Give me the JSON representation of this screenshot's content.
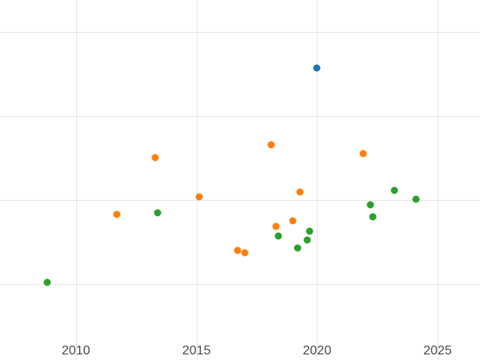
{
  "chart_data": {
    "type": "scatter",
    "title": "",
    "xlabel": "",
    "ylabel": "",
    "grid": true,
    "legend": "none",
    "background": "#ffffff",
    "gridline_color": "#e6e6e6",
    "tick_label_color": "#494949",
    "xlim": [
      2006.85,
      2026.76
    ],
    "ylim": [
      1.9,
      87.6
    ],
    "x_ticks": [
      {
        "value": 2010,
        "label": "2010"
      },
      {
        "value": 2015,
        "label": "2015"
      },
      {
        "value": 2020,
        "label": "2020"
      },
      {
        "value": 2025,
        "label": "2025"
      }
    ],
    "y_gridlines": [
      20,
      40,
      60,
      80
    ],
    "series": [
      {
        "name": "blue",
        "color": "#1f77b4",
        "points": [
          {
            "x": 2020.0,
            "y": 71.4
          }
        ]
      },
      {
        "name": "orange",
        "color": "#ff7f0e",
        "points": [
          {
            "x": 2011.7,
            "y": 36.6
          },
          {
            "x": 2013.3,
            "y": 50.0
          },
          {
            "x": 2015.1,
            "y": 40.8
          },
          {
            "x": 2016.7,
            "y": 28.0
          },
          {
            "x": 2017.0,
            "y": 27.4
          },
          {
            "x": 2018.1,
            "y": 53.1
          },
          {
            "x": 2018.3,
            "y": 33.7
          },
          {
            "x": 2019.0,
            "y": 35.0
          },
          {
            "x": 2019.3,
            "y": 41.9
          },
          {
            "x": 2021.9,
            "y": 51.0
          }
        ]
      },
      {
        "name": "green",
        "color": "#2ca02c",
        "points": [
          {
            "x": 2008.8,
            "y": 20.4
          },
          {
            "x": 2013.4,
            "y": 37.0
          },
          {
            "x": 2018.4,
            "y": 31.4
          },
          {
            "x": 2019.2,
            "y": 28.6
          },
          {
            "x": 2019.6,
            "y": 30.5
          },
          {
            "x": 2019.7,
            "y": 32.6
          },
          {
            "x": 2022.2,
            "y": 38.9
          },
          {
            "x": 2022.3,
            "y": 36.0
          },
          {
            "x": 2023.2,
            "y": 42.3
          },
          {
            "x": 2024.1,
            "y": 40.2
          }
        ]
      }
    ]
  }
}
